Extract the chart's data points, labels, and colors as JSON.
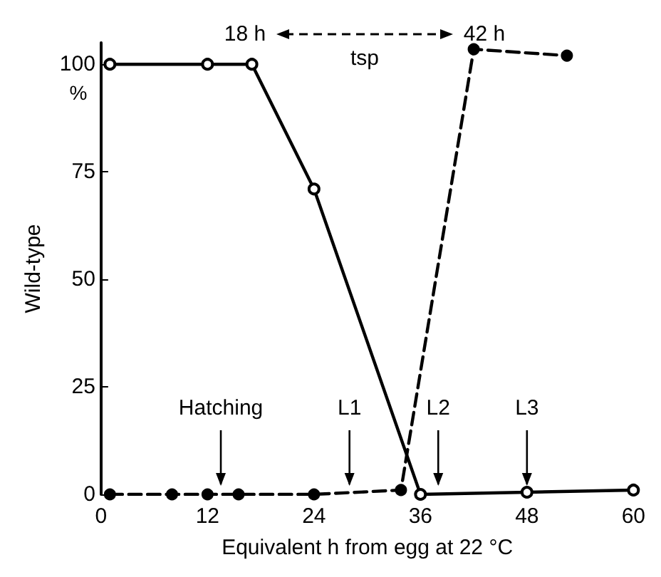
{
  "chart_data": {
    "type": "line",
    "xlabel": "Equivalent h from egg at 22 °C",
    "ylabel": "Wild-type",
    "xlim": [
      0,
      60
    ],
    "xticks": [
      0,
      12,
      24,
      36,
      48,
      60
    ],
    "ylim": [
      0,
      105
    ],
    "yticks": [
      0,
      25,
      50,
      75,
      100
    ],
    "grid": false,
    "marker": "circle",
    "series": [
      {
        "color": "#000000",
        "line_style": "solid",
        "x": [
          1,
          12,
          17,
          24,
          36,
          48,
          60
        ],
        "values": [
          100,
          100,
          100,
          71,
          0,
          0.5,
          1
        ]
      },
      {
        "color": "#000000",
        "line_style": "dashed",
        "x": [
          1,
          8,
          12,
          15.5,
          24,
          33.8,
          42,
          52.5
        ],
        "values": [
          0,
          0,
          0,
          0,
          0,
          1,
          103.5,
          102
        ]
      }
    ],
    "annotations": [
      "%",
      "18 h",
      "tsp",
      "42 h",
      {
        "text": "Hatching",
        "x": 13.5,
        "y": 1
      },
      {
        "text": "L1",
        "x": 28,
        "y": 1
      },
      {
        "text": "L2",
        "x": 38,
        "y": 1
      },
      {
        "text": "L3",
        "x": 48,
        "y": 1
      }
    ]
  }
}
